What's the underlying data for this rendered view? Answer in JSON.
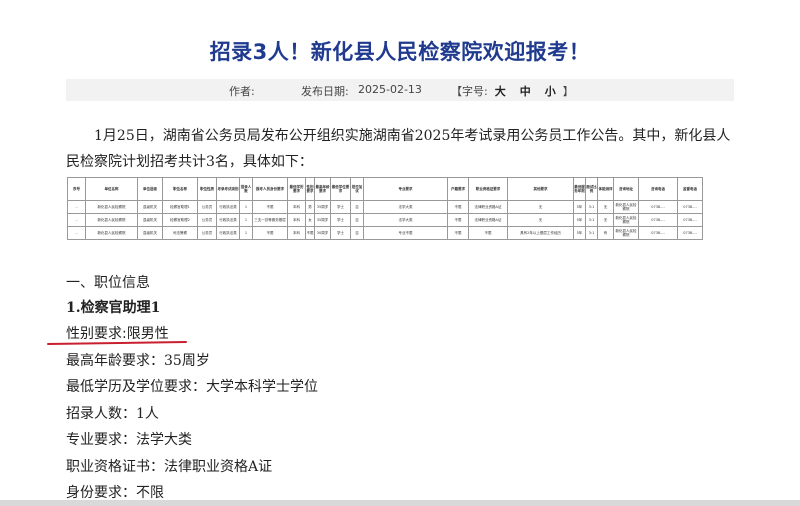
{
  "article": {
    "title": "招录3人！新化县人民检察院欢迎报考！",
    "meta": {
      "author_label": "作者:",
      "date_label": "发布日期:",
      "date": "2025-02-13",
      "font_label": "【字号:",
      "font_large": "大",
      "font_medium": "中",
      "font_small": "小",
      "font_end": "】"
    },
    "intro": "1月25日，湖南省公务员局发布公开组织实施湖南省2025年考试录用公务员工作公告。其中，新化县人民检察院计划招考共计3名，具体如下：",
    "table": {
      "headers": [
        "序号",
        "单位名称",
        "单位层级",
        "职位名称",
        "职位性质",
        "考录考试类别",
        "招录人数",
        "报考人员身份要求",
        "最低学历要求",
        "性别要求",
        "最高年龄要求",
        "最低学位要求",
        "是否加试",
        "专业要求",
        "户籍要求",
        "职业资格证要求",
        "其他要求",
        "最低服务年限",
        "面试比例",
        "体能测评",
        "咨询地址",
        "咨询电话",
        "监督电话"
      ],
      "rows": [
        [
          "..",
          "新化县人民检察院",
          "县级机关",
          "检察官助理1",
          "公务员",
          "行政执法类",
          "1",
          "不限",
          "本科",
          "男",
          "35周岁",
          "学士",
          "否",
          "法学大类",
          "不限",
          "法律职业资格A证",
          "无",
          "5年",
          "3:1",
          "无",
          "新化县人民检察院",
          "0738-...",
          "0738-..."
        ],
        [
          "..",
          "新化县人民检察院",
          "县级机关",
          "检察官助理2",
          "公务员",
          "行政执法类",
          "1",
          "三支一扶等服务基层",
          "本科",
          "女",
          "35周岁",
          "学士",
          "否",
          "法学大类",
          "不限",
          "法律职业资格A证",
          "无",
          "5年",
          "3:1",
          "无",
          "新化县人民检察院",
          "0738-...",
          "0738-..."
        ],
        [
          "..",
          "新化县人民检察院",
          "县级机关",
          "司法警察",
          "公务员",
          "行政执法类",
          "1",
          "不限",
          "本科",
          "不限",
          "30周岁",
          "学士",
          "否",
          "专业不限",
          "不限",
          "不限",
          "具有2年以上基层工作经历",
          "5年",
          "3:1",
          "有",
          "新化县人民检察院",
          "0738-...",
          "0738-..."
        ]
      ]
    },
    "section": "一、职位信息",
    "position_title": "1.检察官助理1",
    "requirements": [
      "性别要求:限男性",
      "最高年龄要求：35周岁",
      "最低学历及学位要求：大学本科学士学位",
      "招录人数：1人",
      "专业要求：法学大类",
      "职业资格证书：法律职业资格A证",
      "身份要求：不限"
    ]
  },
  "colors": {
    "title": "#1f3a8f",
    "annotation_underline": "#c8202e"
  }
}
